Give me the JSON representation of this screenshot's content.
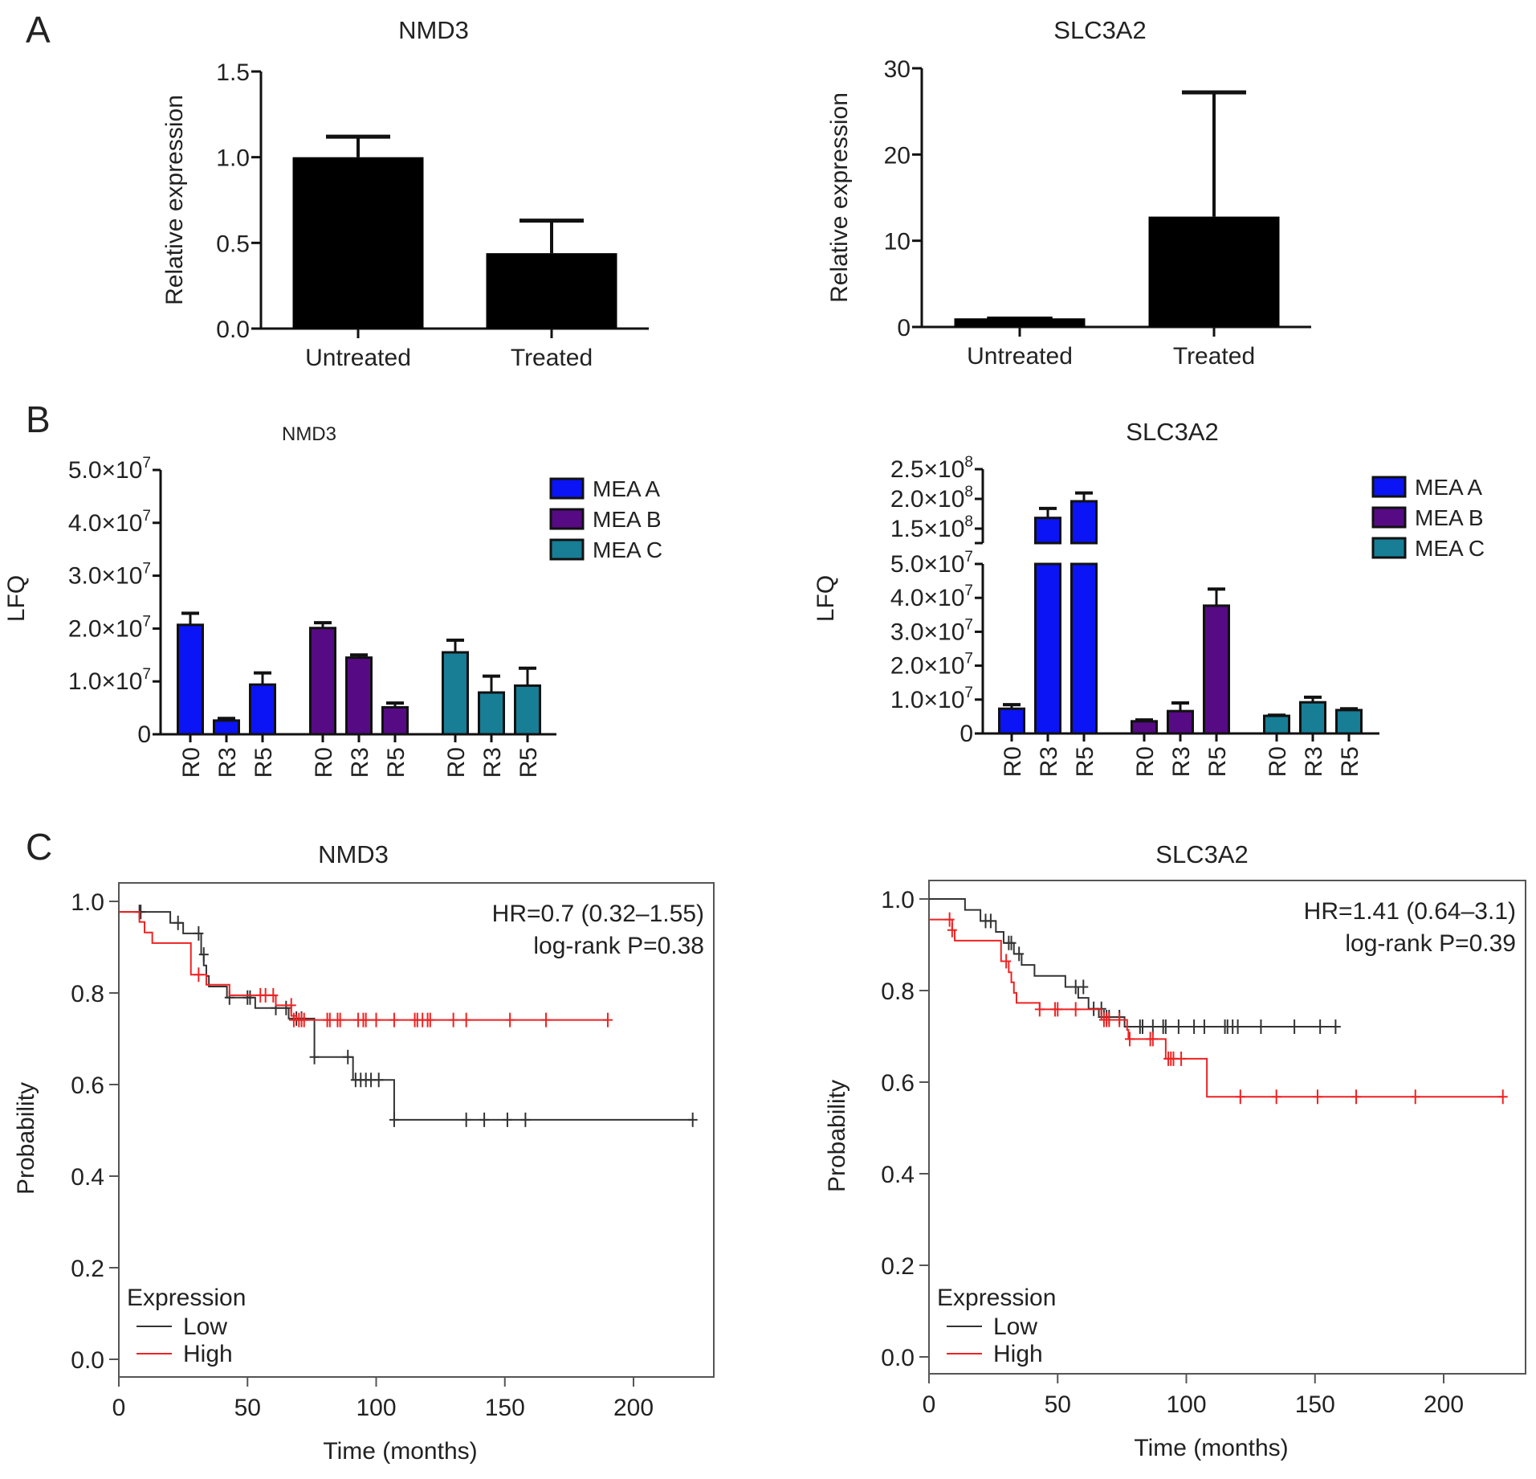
{
  "panels": {
    "A": {
      "letter": "A"
    },
    "B": {
      "letter": "B"
    },
    "C": {
      "letter": "C"
    }
  },
  "chart_data": [
    {
      "id": "A-NMD3",
      "type": "bar",
      "title": "NMD3",
      "xlabel": "",
      "ylabel": "Relative expression",
      "categories": [
        "Untreated",
        "Treated"
      ],
      "values": [
        1.0,
        0.44
      ],
      "error_upper": [
        1.12,
        0.63
      ],
      "ylim": [
        0,
        1.5
      ],
      "yticks": [
        0.0,
        0.5,
        1.0,
        1.5
      ],
      "ytick_labels": [
        "0.0",
        "0.5",
        "1.0",
        "1.5"
      ],
      "bar_color": "#000000"
    },
    {
      "id": "A-SLC3A2",
      "type": "bar",
      "title": "SLC3A2",
      "xlabel": "",
      "ylabel": "Relative expression",
      "categories": [
        "Untreated",
        "Treated"
      ],
      "values": [
        1.0,
        12.8
      ],
      "error_upper": [
        1.2,
        27.2
      ],
      "ylim": [
        0,
        30
      ],
      "yticks": [
        0,
        10,
        20,
        30
      ],
      "ytick_labels": [
        "0",
        "10",
        "20",
        "30"
      ],
      "bar_color": "#000000"
    },
    {
      "id": "B-NMD3",
      "type": "bar",
      "title": "NMD3",
      "ylabel": "LFQ",
      "groups": [
        "MEA A",
        "MEA B",
        "MEA C"
      ],
      "categories": [
        "R0",
        "R3",
        "R5"
      ],
      "series": [
        {
          "name": "MEA A",
          "color": "#0A14F5",
          "values": [
            20700000,
            2600000,
            9400000
          ],
          "error_upper": [
            22900000,
            3000000,
            11600000
          ]
        },
        {
          "name": "MEA B",
          "color": "#560A84",
          "values": [
            20100000,
            14500000,
            5100000
          ],
          "error_upper": [
            21100000,
            15000000,
            5900000
          ]
        },
        {
          "name": "MEA C",
          "color": "#177E96",
          "values": [
            15500000,
            7900000,
            9200000
          ],
          "error_upper": [
            17800000,
            11000000,
            12500000
          ]
        }
      ],
      "ylim": [
        0,
        50000000
      ],
      "yticks": [
        0,
        10000000,
        20000000,
        30000000,
        40000000,
        50000000
      ],
      "ytick_labels": [
        {
          "base": "0",
          "exp": ""
        },
        {
          "base": "1.0×10",
          "exp": "7"
        },
        {
          "base": "2.0×10",
          "exp": "7"
        },
        {
          "base": "3.0×10",
          "exp": "7"
        },
        {
          "base": "4.0×10",
          "exp": "7"
        },
        {
          "base": "5.0×10",
          "exp": "7"
        }
      ],
      "legend": [
        "MEA A",
        "MEA B",
        "MEA C"
      ],
      "legend_position": "top-right"
    },
    {
      "id": "B-SLC3A2",
      "type": "bar",
      "title": "SLC3A2",
      "ylabel": "LFQ",
      "groups": [
        "MEA A",
        "MEA B",
        "MEA C"
      ],
      "categories": [
        "R0",
        "R3",
        "R5"
      ],
      "broken_axis": {
        "lower": [
          0,
          50000000
        ],
        "upper": [
          125000000,
          250000000
        ]
      },
      "series": [
        {
          "name": "MEA A",
          "color": "#0A14F5",
          "values": [
            7300000,
            168000000,
            196000000
          ],
          "error_upper": [
            8500000,
            184000000,
            210000000
          ]
        },
        {
          "name": "MEA B",
          "color": "#560A84",
          "values": [
            3600000,
            6600000,
            37700000
          ],
          "error_upper": [
            4000000,
            9000000,
            42600000
          ]
        },
        {
          "name": "MEA C",
          "color": "#177E96",
          "values": [
            5200000,
            9200000,
            6900000
          ],
          "error_upper": [
            5400000,
            10700000,
            7300000
          ]
        }
      ],
      "yticks_lower": [
        0,
        10000000,
        20000000,
        30000000,
        40000000,
        50000000
      ],
      "ytick_labels_lower": [
        {
          "base": "0",
          "exp": ""
        },
        {
          "base": "1.0×10",
          "exp": "7"
        },
        {
          "base": "2.0×10",
          "exp": "7"
        },
        {
          "base": "3.0×10",
          "exp": "7"
        },
        {
          "base": "4.0×10",
          "exp": "7"
        },
        {
          "base": "5.0×10",
          "exp": "7"
        }
      ],
      "yticks_upper": [
        150000000,
        200000000,
        250000000
      ],
      "ytick_labels_upper": [
        {
          "base": "1.5×10",
          "exp": "8"
        },
        {
          "base": "2.0×10",
          "exp": "8"
        },
        {
          "base": "2.5×10",
          "exp": "8"
        }
      ],
      "legend": [
        "MEA A",
        "MEA B",
        "MEA C"
      ],
      "legend_position": "top-right"
    },
    {
      "id": "C-NMD3",
      "type": "line",
      "subtype": "kaplan-meier",
      "title": "NMD3",
      "xlabel": "Time (months)",
      "ylabel": "Probability",
      "xlim": [
        0,
        230
      ],
      "ylim": [
        0,
        1.0
      ],
      "xticks": [
        0,
        50,
        100,
        150,
        200
      ],
      "yticks": [
        0.0,
        0.2,
        0.4,
        0.6,
        0.8,
        1.0
      ],
      "ytick_labels": [
        "0.0",
        "0.2",
        "0.4",
        "0.6",
        "0.8",
        "1.0"
      ],
      "annotations": [
        "HR=0.7 (0.32–1.55)",
        "log-rank P=0.38"
      ],
      "legend_title": "Expression",
      "legend_position": "bottom-left",
      "series": [
        {
          "name": "Low",
          "color": "#333333",
          "steps": [
            [
              0,
              0.977
            ],
            [
              20,
              0.953
            ],
            [
              25,
              0.93
            ],
            [
              32,
              0.884
            ],
            [
              33,
              0.86
            ],
            [
              34,
              0.837
            ],
            [
              35,
              0.814
            ],
            [
              42,
              0.79
            ],
            [
              53,
              0.767
            ],
            [
              60,
              0.767
            ],
            [
              66,
              0.744
            ],
            [
              76,
              0.66
            ],
            [
              91,
              0.61
            ],
            [
              107,
              0.523
            ],
            [
              223,
              0.523
            ]
          ],
          "censors": [
            [
              8,
              0.977
            ],
            [
              8.5,
              0.977
            ],
            [
              23,
              0.953
            ],
            [
              31,
              0.93
            ],
            [
              33,
              0.884
            ],
            [
              43,
              0.79
            ],
            [
              50,
              0.79
            ],
            [
              51,
              0.79
            ],
            [
              61,
              0.767
            ],
            [
              65,
              0.767
            ],
            [
              69,
              0.744
            ],
            [
              71,
              0.744
            ],
            [
              76,
              0.66
            ],
            [
              89,
              0.66
            ],
            [
              92,
              0.61
            ],
            [
              94,
              0.61
            ],
            [
              96,
              0.61
            ],
            [
              98,
              0.61
            ],
            [
              101,
              0.61
            ],
            [
              107,
              0.523
            ],
            [
              135,
              0.523
            ],
            [
              142,
              0.523
            ],
            [
              151,
              0.523
            ],
            [
              158,
              0.523
            ],
            [
              223,
              0.523
            ]
          ]
        },
        {
          "name": "High",
          "color": "#EE2222",
          "steps": [
            [
              0,
              0.977
            ],
            [
              8,
              0.955
            ],
            [
              10,
              0.932
            ],
            [
              13,
              0.909
            ],
            [
              28,
              0.84
            ],
            [
              34,
              0.818
            ],
            [
              43,
              0.795
            ],
            [
              61,
              0.773
            ],
            [
              67,
              0.75
            ],
            [
              69,
              0.741
            ],
            [
              190,
              0.741
            ]
          ],
          "censors": [
            [
              31,
              0.84
            ],
            [
              55,
              0.795
            ],
            [
              57,
              0.795
            ],
            [
              60,
              0.795
            ],
            [
              67,
              0.773
            ],
            [
              68,
              0.741
            ],
            [
              70,
              0.741
            ],
            [
              71,
              0.741
            ],
            [
              72,
              0.741
            ],
            [
              81,
              0.741
            ],
            [
              82,
              0.741
            ],
            [
              85,
              0.741
            ],
            [
              86,
              0.741
            ],
            [
              93,
              0.741
            ],
            [
              95,
              0.741
            ],
            [
              96,
              0.741
            ],
            [
              100,
              0.741
            ],
            [
              107,
              0.741
            ],
            [
              115,
              0.741
            ],
            [
              116,
              0.741
            ],
            [
              118,
              0.741
            ],
            [
              120,
              0.741
            ],
            [
              121,
              0.741
            ],
            [
              130,
              0.741
            ],
            [
              135,
              0.741
            ],
            [
              152,
              0.741
            ],
            [
              166,
              0.741
            ],
            [
              190,
              0.741
            ]
          ]
        }
      ]
    },
    {
      "id": "C-SLC3A2",
      "type": "line",
      "subtype": "kaplan-meier",
      "title": "SLC3A2",
      "xlabel": "Time (months)",
      "ylabel": "Probability",
      "xlim": [
        0,
        230
      ],
      "ylim": [
        0,
        1.0
      ],
      "xticks": [
        0,
        50,
        100,
        150,
        200
      ],
      "yticks": [
        0.0,
        0.2,
        0.4,
        0.6,
        0.8,
        1.0
      ],
      "ytick_labels": [
        "0.0",
        "0.2",
        "0.4",
        "0.6",
        "0.8",
        "1.0"
      ],
      "annotations": [
        "HR=1.41 (0.64–3.1)",
        "log-rank P=0.39"
      ],
      "legend_title": "Expression",
      "legend_position": "bottom-left",
      "series": [
        {
          "name": "Low",
          "color": "#333333",
          "steps": [
            [
              0,
              1.0
            ],
            [
              14,
              0.976
            ],
            [
              20,
              0.952
            ],
            [
              26,
              0.928
            ],
            [
              29,
              0.904
            ],
            [
              33,
              0.88
            ],
            [
              36,
              0.856
            ],
            [
              41,
              0.832
            ],
            [
              53,
              0.808
            ],
            [
              58,
              0.784
            ],
            [
              62,
              0.76
            ],
            [
              66,
              0.742
            ],
            [
              76,
              0.721
            ],
            [
              160,
              0.721
            ]
          ],
          "censors": [
            [
              22,
              0.952
            ],
            [
              24,
              0.952
            ],
            [
              31,
              0.904
            ],
            [
              32,
              0.904
            ],
            [
              35,
              0.88
            ],
            [
              57,
              0.808
            ],
            [
              60,
              0.808
            ],
            [
              64,
              0.76
            ],
            [
              67,
              0.76
            ],
            [
              68,
              0.742
            ],
            [
              69,
              0.742
            ],
            [
              70,
              0.742
            ],
            [
              74,
              0.742
            ],
            [
              82,
              0.721
            ],
            [
              83,
              0.721
            ],
            [
              87,
              0.721
            ],
            [
              91,
              0.721
            ],
            [
              92,
              0.721
            ],
            [
              97,
              0.721
            ],
            [
              103,
              0.721
            ],
            [
              107,
              0.721
            ],
            [
              115,
              0.721
            ],
            [
              116,
              0.721
            ],
            [
              118,
              0.721
            ],
            [
              120,
              0.721
            ],
            [
              129,
              0.721
            ],
            [
              142,
              0.721
            ],
            [
              152,
              0.721
            ],
            [
              158,
              0.721
            ]
          ]
        },
        {
          "name": "High",
          "color": "#EE2222",
          "steps": [
            [
              0,
              0.955
            ],
            [
              9,
              0.932
            ],
            [
              10,
              0.909
            ],
            [
              28,
              0.864
            ],
            [
              31,
              0.84
            ],
            [
              32,
              0.818
            ],
            [
              33,
              0.795
            ],
            [
              34,
              0.773
            ],
            [
              43,
              0.759
            ],
            [
              67,
              0.736
            ],
            [
              77,
              0.714
            ],
            [
              77.5,
              0.694
            ],
            [
              92,
              0.651
            ],
            [
              108,
              0.568
            ],
            [
              223,
              0.568
            ]
          ],
          "censors": [
            [
              8,
              0.955
            ],
            [
              9,
              0.932
            ],
            [
              30,
              0.864
            ],
            [
              43,
              0.759
            ],
            [
              49,
              0.759
            ],
            [
              50,
              0.759
            ],
            [
              57,
              0.759
            ],
            [
              68,
              0.736
            ],
            [
              69,
              0.736
            ],
            [
              70,
              0.736
            ],
            [
              74,
              0.736
            ],
            [
              78,
              0.694
            ],
            [
              86,
              0.694
            ],
            [
              87,
              0.694
            ],
            [
              93,
              0.651
            ],
            [
              94,
              0.651
            ],
            [
              95,
              0.651
            ],
            [
              98,
              0.651
            ],
            [
              121,
              0.568
            ],
            [
              135,
              0.568
            ],
            [
              151,
              0.568
            ],
            [
              166,
              0.568
            ],
            [
              189,
              0.568
            ],
            [
              223,
              0.568
            ]
          ]
        }
      ]
    }
  ]
}
